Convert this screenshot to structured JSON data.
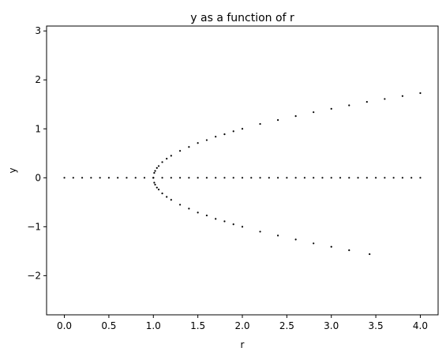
{
  "chart_data": {
    "type": "scatter",
    "title": "y as a function of r",
    "xlabel": "r",
    "ylabel": "y",
    "xlim": [
      -0.2,
      4.2
    ],
    "ylim": [
      -2.8,
      3.1
    ],
    "grid": false,
    "marker_color": "#000000",
    "x_ticks": [
      {
        "value": 0.0,
        "label": "0.0"
      },
      {
        "value": 0.5,
        "label": "0.5"
      },
      {
        "value": 1.0,
        "label": "1.0"
      },
      {
        "value": 1.5,
        "label": "1.5"
      },
      {
        "value": 2.0,
        "label": "2.0"
      },
      {
        "value": 2.5,
        "label": "2.5"
      },
      {
        "value": 3.0,
        "label": "3.0"
      },
      {
        "value": 3.5,
        "label": "3.5"
      },
      {
        "value": 4.0,
        "label": "4.0"
      }
    ],
    "y_ticks": [
      {
        "value": -2,
        "label": "−2"
      },
      {
        "value": -1,
        "label": "−1"
      },
      {
        "value": 0,
        "label": "0"
      },
      {
        "value": 1,
        "label": "1"
      },
      {
        "value": 2,
        "label": "2"
      },
      {
        "value": 3,
        "label": "3"
      }
    ],
    "series": [
      {
        "x": [
          0.0,
          0.1,
          0.2,
          0.3,
          0.4,
          0.5,
          0.6,
          0.7,
          0.8,
          0.9,
          1.0,
          1.1,
          1.2,
          1.3,
          1.4,
          1.5,
          1.6,
          1.7,
          1.8,
          1.9,
          2.0,
          2.1,
          2.2,
          2.3,
          2.4,
          2.5,
          2.6,
          2.7,
          2.8,
          2.9,
          3.0,
          3.1,
          3.2,
          3.3,
          3.4,
          3.5,
          3.6,
          3.7,
          3.8,
          3.9,
          4.0
        ],
        "y": [
          0,
          0,
          0,
          0,
          0,
          0,
          0,
          0,
          0,
          0,
          0,
          0,
          0,
          0,
          0,
          0,
          0,
          0,
          0,
          0,
          0,
          0,
          0,
          0,
          0,
          0,
          0,
          0,
          0,
          0,
          0,
          0,
          0,
          0,
          0,
          0,
          0,
          0,
          0,
          0,
          0
        ]
      },
      {
        "x": [
          1.0,
          1.01,
          1.02,
          1.04,
          1.06,
          1.1,
          1.15,
          1.2,
          1.3,
          1.4,
          1.5,
          1.6,
          1.7,
          1.8,
          1.9,
          2.0,
          2.2,
          2.4,
          2.6,
          2.8,
          3.0,
          3.2,
          3.4,
          3.6,
          3.8,
          4.0
        ],
        "y": [
          0.0,
          0.1,
          0.14,
          0.2,
          0.24,
          0.32,
          0.39,
          0.45,
          0.55,
          0.63,
          0.71,
          0.77,
          0.84,
          0.89,
          0.95,
          1.0,
          1.1,
          1.18,
          1.26,
          1.34,
          1.41,
          1.48,
          1.55,
          1.61,
          1.67,
          1.73
        ]
      },
      {
        "x": [
          1.0,
          1.01,
          1.02,
          1.04,
          1.06,
          1.1,
          1.15,
          1.2,
          1.3,
          1.4,
          1.5,
          1.6,
          1.7,
          1.8,
          1.9,
          2.0,
          2.2,
          2.4,
          2.6,
          2.8,
          3.0,
          3.2,
          3.43
        ],
        "y": [
          0.0,
          -0.1,
          -0.14,
          -0.2,
          -0.24,
          -0.32,
          -0.39,
          -0.45,
          -0.55,
          -0.63,
          -0.71,
          -0.77,
          -0.84,
          -0.89,
          -0.95,
          -1.0,
          -1.1,
          -1.18,
          -1.26,
          -1.34,
          -1.41,
          -1.48,
          -1.56
        ]
      }
    ]
  }
}
